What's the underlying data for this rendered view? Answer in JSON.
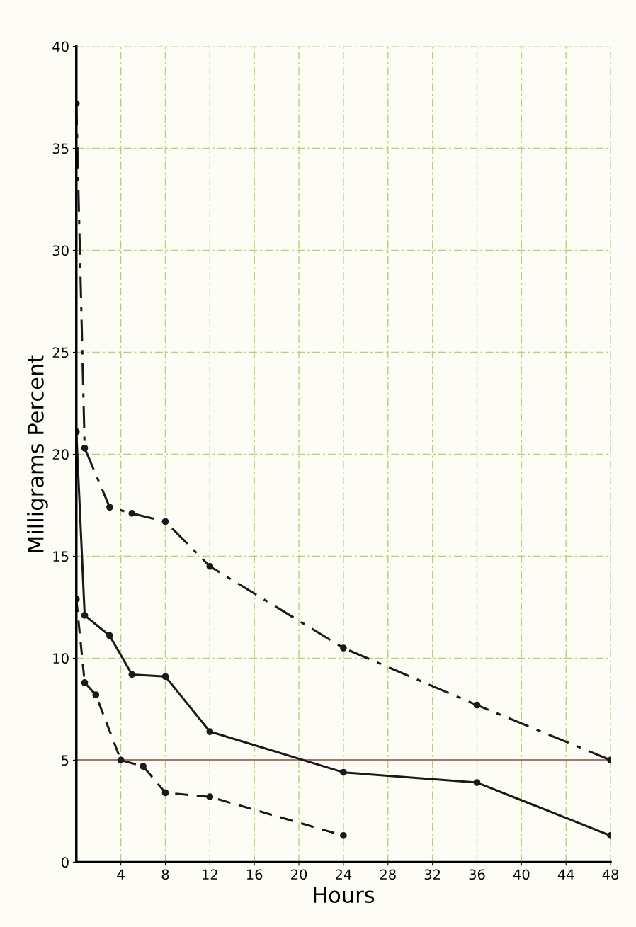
{
  "chart_data": {
    "type": "line",
    "xlabel": "Hours",
    "ylabel": "Milligrams Percent",
    "xlim": [
      0,
      48
    ],
    "xticks": [
      4,
      8,
      12,
      16,
      20,
      24,
      28,
      32,
      36,
      40,
      44,
      48
    ],
    "ylim": [
      0,
      40
    ],
    "yticks": [
      0,
      5,
      10,
      15,
      20,
      25,
      30,
      35,
      40
    ],
    "grid": true,
    "legend": false,
    "marker": "circle",
    "ref_lines": [
      {
        "axis": "y",
        "value": 5,
        "color": "#a0786e",
        "line_style": "solid"
      }
    ],
    "series": [
      {
        "color": "#1a1a1a",
        "line_style": "dashdot",
        "x": [
          0,
          0.75,
          3,
          5,
          8,
          12,
          24,
          36,
          48
        ],
        "values": [
          37.2,
          20.3,
          17.4,
          17.1,
          16.7,
          14.5,
          10.5,
          7.7,
          5.0
        ]
      },
      {
        "color": "#1a1a1a",
        "line_style": "solid",
        "x": [
          0,
          0.75,
          3,
          5,
          8,
          12,
          24,
          36,
          48
        ],
        "values": [
          21.1,
          12.1,
          11.1,
          9.2,
          9.1,
          6.4,
          4.4,
          3.9,
          1.3
        ]
      },
      {
        "color": "#1a1a1a",
        "line_style": "dashed",
        "x": [
          0,
          0.75,
          1.75,
          4,
          6,
          8,
          12,
          24
        ],
        "values": [
          12.9,
          8.8,
          8.2,
          5.0,
          4.7,
          3.4,
          3.2,
          1.3
        ]
      }
    ]
  }
}
